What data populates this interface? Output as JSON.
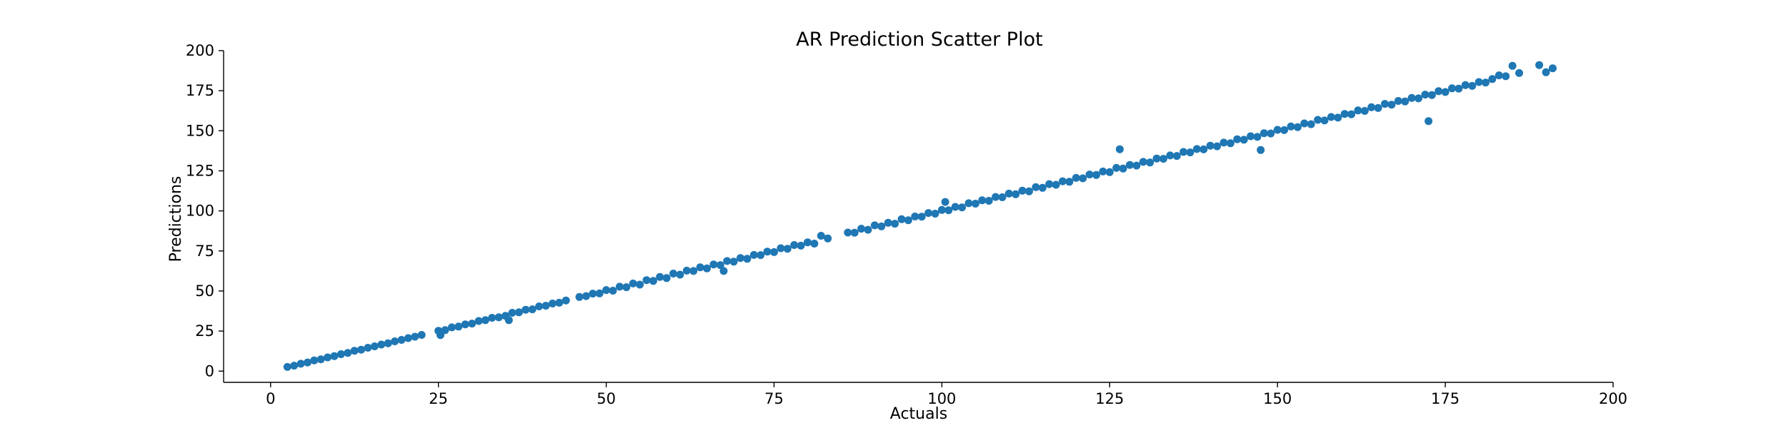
{
  "chart_data": {
    "type": "scatter",
    "title": "AR Prediction Scatter Plot",
    "xlabel": "Actuals",
    "ylabel": "Predictions",
    "xlim": [
      -7,
      200
    ],
    "ylim": [
      -7,
      200
    ],
    "xticks": [
      0,
      25,
      50,
      75,
      100,
      125,
      150,
      175,
      200
    ],
    "yticks": [
      0,
      25,
      50,
      75,
      100,
      125,
      150,
      175,
      200
    ],
    "grid": false,
    "legend": "none",
    "color": "#1f77b4",
    "series": [
      {
        "points": [
          [
            2.5,
            2.6
          ],
          [
            3.5,
            3.4
          ],
          [
            4.5,
            4.6
          ],
          [
            5.5,
            5.4
          ],
          [
            6.5,
            6.7
          ],
          [
            7.5,
            7.4
          ],
          [
            8.5,
            8.6
          ],
          [
            9.5,
            9.4
          ],
          [
            10.5,
            10.6
          ],
          [
            11.5,
            11.4
          ],
          [
            12.5,
            12.7
          ],
          [
            13.5,
            13.4
          ],
          [
            14.5,
            14.6
          ],
          [
            15.5,
            15.5
          ],
          [
            16.5,
            16.6
          ],
          [
            17.5,
            17.4
          ],
          [
            18.5,
            18.6
          ],
          [
            19.5,
            19.5
          ],
          [
            20.5,
            20.6
          ],
          [
            21.5,
            21.5
          ],
          [
            22.5,
            22.6
          ],
          [
            25.0,
            25.2
          ],
          [
            25.3,
            22.5
          ],
          [
            26.0,
            25.6
          ],
          [
            27.0,
            27.3
          ],
          [
            28.0,
            27.8
          ],
          [
            29.0,
            29.2
          ],
          [
            30.0,
            29.7
          ],
          [
            31.0,
            31.3
          ],
          [
            32.0,
            31.8
          ],
          [
            33.0,
            33.3
          ],
          [
            34.0,
            33.6
          ],
          [
            35.0,
            34.5
          ],
          [
            35.5,
            31.8
          ],
          [
            36.0,
            36.4
          ],
          [
            37.0,
            36.7
          ],
          [
            38.0,
            38.3
          ],
          [
            39.0,
            38.6
          ],
          [
            40.0,
            40.4
          ],
          [
            41.0,
            40.8
          ],
          [
            42.0,
            42.2
          ],
          [
            43.0,
            42.7
          ],
          [
            44.0,
            44.1
          ],
          [
            46.0,
            46.3
          ],
          [
            47.0,
            46.8
          ],
          [
            48.0,
            48.4
          ],
          [
            49.0,
            48.5
          ],
          [
            50.0,
            50.6
          ],
          [
            51.0,
            50.2
          ],
          [
            52.0,
            52.7
          ],
          [
            53.0,
            52.4
          ],
          [
            54.0,
            54.7
          ],
          [
            55.0,
            54.0
          ],
          [
            56.0,
            56.8
          ],
          [
            57.0,
            56.3
          ],
          [
            58.0,
            58.8
          ],
          [
            59.0,
            58.1
          ],
          [
            60.0,
            60.9
          ],
          [
            61.0,
            60.2
          ],
          [
            62.0,
            62.7
          ],
          [
            63.0,
            62.5
          ],
          [
            64.0,
            64.8
          ],
          [
            65.0,
            64.1
          ],
          [
            66.0,
            66.6
          ],
          [
            67.0,
            66.2
          ],
          [
            67.5,
            62.5
          ],
          [
            68.0,
            68.7
          ],
          [
            69.0,
            68.3
          ],
          [
            70.0,
            70.6
          ],
          [
            71.0,
            70.1
          ],
          [
            72.0,
            72.5
          ],
          [
            73.0,
            72.4
          ],
          [
            74.0,
            74.6
          ],
          [
            75.0,
            74.3
          ],
          [
            76.0,
            76.7
          ],
          [
            77.0,
            76.4
          ],
          [
            78.0,
            78.7
          ],
          [
            79.0,
            78.3
          ],
          [
            80.0,
            80.4
          ],
          [
            81.0,
            79.6
          ],
          [
            82.0,
            84.5
          ],
          [
            83.0,
            82.8
          ],
          [
            86.0,
            86.5
          ],
          [
            87.0,
            86.4
          ],
          [
            88.0,
            88.9
          ],
          [
            89.0,
            88.2
          ],
          [
            90.0,
            91.0
          ],
          [
            91.0,
            90.3
          ],
          [
            92.0,
            92.6
          ],
          [
            93.0,
            92.0
          ],
          [
            94.0,
            94.8
          ],
          [
            95.0,
            94.2
          ],
          [
            96.0,
            96.5
          ],
          [
            97.0,
            96.4
          ],
          [
            98.0,
            98.7
          ],
          [
            99.0,
            98.3
          ],
          [
            100.0,
            100.6
          ],
          [
            100.5,
            105.6
          ],
          [
            101.0,
            100.4
          ],
          [
            102.0,
            102.5
          ],
          [
            103.0,
            102.2
          ],
          [
            104.0,
            104.8
          ],
          [
            105.0,
            104.5
          ],
          [
            106.0,
            106.6
          ],
          [
            107.0,
            106.3
          ],
          [
            108.0,
            108.7
          ],
          [
            109.0,
            108.5
          ],
          [
            110.0,
            110.8
          ],
          [
            111.0,
            110.4
          ],
          [
            112.0,
            112.6
          ],
          [
            113.0,
            112.2
          ],
          [
            114.0,
            114.8
          ],
          [
            115.0,
            114.4
          ],
          [
            116.0,
            116.7
          ],
          [
            117.0,
            116.3
          ],
          [
            118.0,
            118.5
          ],
          [
            119.0,
            118.2
          ],
          [
            120.0,
            120.6
          ],
          [
            121.0,
            120.3
          ],
          [
            122.0,
            122.7
          ],
          [
            123.0,
            122.4
          ],
          [
            124.0,
            124.6
          ],
          [
            125.0,
            124.2
          ],
          [
            126.0,
            126.8
          ],
          [
            126.5,
            138.5
          ],
          [
            127.0,
            126.4
          ],
          [
            128.0,
            128.7
          ],
          [
            129.0,
            128.3
          ],
          [
            130.0,
            130.6
          ],
          [
            131.0,
            130.2
          ],
          [
            132.0,
            132.7
          ],
          [
            133.0,
            132.5
          ],
          [
            134.0,
            134.6
          ],
          [
            135.0,
            134.3
          ],
          [
            136.0,
            136.8
          ],
          [
            137.0,
            136.5
          ],
          [
            138.0,
            138.6
          ],
          [
            139.0,
            138.4
          ],
          [
            140.0,
            140.7
          ],
          [
            141.0,
            140.3
          ],
          [
            142.0,
            142.6
          ],
          [
            143.0,
            142.2
          ],
          [
            144.0,
            144.7
          ],
          [
            145.0,
            144.4
          ],
          [
            146.0,
            146.6
          ],
          [
            147.0,
            146.2
          ],
          [
            147.5,
            138.0
          ],
          [
            148.0,
            148.5
          ],
          [
            149.0,
            148.3
          ],
          [
            150.0,
            150.6
          ],
          [
            151.0,
            150.4
          ],
          [
            152.0,
            152.7
          ],
          [
            153.0,
            152.3
          ],
          [
            154.0,
            154.6
          ],
          [
            155.0,
            154.1
          ],
          [
            156.0,
            156.8
          ],
          [
            157.0,
            156.4
          ],
          [
            158.0,
            158.6
          ],
          [
            159.0,
            158.2
          ],
          [
            160.0,
            160.5
          ],
          [
            161.0,
            160.3
          ],
          [
            162.0,
            162.7
          ],
          [
            163.0,
            162.4
          ],
          [
            164.0,
            164.7
          ],
          [
            165.0,
            164.2
          ],
          [
            166.0,
            166.8
          ],
          [
            167.0,
            166.3
          ],
          [
            168.0,
            168.6
          ],
          [
            169.0,
            168.3
          ],
          [
            170.0,
            170.5
          ],
          [
            171.0,
            170.2
          ],
          [
            172.0,
            172.6
          ],
          [
            172.5,
            156.0
          ],
          [
            173.0,
            172.3
          ],
          [
            174.0,
            174.7
          ],
          [
            175.0,
            174.2
          ],
          [
            176.0,
            176.5
          ],
          [
            177.0,
            176.3
          ],
          [
            178.0,
            178.5
          ],
          [
            179.0,
            178.0
          ],
          [
            180.0,
            180.4
          ],
          [
            181.0,
            180.1
          ],
          [
            182.0,
            182.3
          ],
          [
            183.0,
            184.6
          ],
          [
            184.0,
            184.0
          ],
          [
            185.0,
            190.5
          ],
          [
            186.0,
            186.0
          ],
          [
            189.0,
            191.0
          ],
          [
            190.0,
            186.5
          ],
          [
            191.0,
            189.0
          ]
        ]
      }
    ]
  }
}
